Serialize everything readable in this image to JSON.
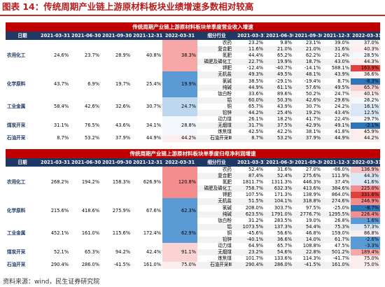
{
  "figure": {
    "title": "图表 14：传统周期产业链上游原材料板块业绩增速多数相对较高"
  },
  "source": "资料来源：wind，民生证券研究院",
  "colors": {
    "accent_red": "#c00000",
    "header_navy": "#1f3864"
  },
  "tables": [
    {
      "banner": "传统周期产业链上游原材料板块单季度营业收入增速",
      "headers": [
        "日期",
        "2021-03-31",
        "2021-06-30",
        "2021-09-30",
        "2021-12-31",
        "2022-03-31",
        "细分行业",
        "2021-03-31",
        "2021-06-30",
        "2021-09-30",
        "2021-12-31",
        "2022-03-31"
      ],
      "groups": [
        {
          "name": "农用化工",
          "values": [
            "24.6%",
            "23.7%",
            "28.9%",
            "40.8%",
            "38.3%"
          ],
          "heat": "#f8a7a7",
          "subs": [
            {
              "name": "农药",
              "values": [
                "23.2%",
                "9.8%",
                "23.1%",
                "39.0%",
                "37.0%"
              ],
              "last_color": "#fdf2f2"
            },
            {
              "name": "复合肥",
              "values": [
                "11.6%",
                "21.0%",
                "21.0%",
                "31.6%",
                "40.3%"
              ],
              "last_color": "#fdeeee"
            },
            {
              "name": "氮肥",
              "values": [
                "44.4%",
                "65.2%",
                "62.2%",
                "21.4%",
                "28.5%"
              ],
              "last_color": "#f4f7fc"
            },
            {
              "name": "磷肥及磷化工",
              "values": [
                "22.7%",
                "19.9%",
                "18.7%",
                "43.0%",
                "44.3%"
              ],
              "last_color": "#fdeeee"
            },
            {
              "name": "钾肥",
              "values": [
                "-12.4%",
                "-40.7%",
                "-14.1%",
                "588.1%",
                "163.9%"
              ],
              "last_color": "#e23f3f"
            }
          ]
        },
        {
          "name": "化学原料",
          "values": [
            "43.7%",
            "6.9%",
            "19.7%",
            "25.4%",
            "19.9%"
          ],
          "heat": "#5b9bd5",
          "subs": [
            {
              "name": "无机盐",
              "values": [
                "49.3%",
                "49.5%",
                "48.1%",
                "43.9%",
                "36.6%"
              ],
              "last_color": "#fdf2f2"
            },
            {
              "name": "氯碱",
              "values": [
                "38.5%",
                "-29.1%",
                "-19.4%",
                "8.7%",
                "-8.3%"
              ],
              "last_color": "#2e75b6"
            },
            {
              "name": "纯碱",
              "values": [
                "44.9%",
                "61.1%",
                "57.6%",
                "49.5%",
                "65.7%"
              ],
              "last_color": "#f9cfcf"
            },
            {
              "name": "钛白粉",
              "values": [
                "33.6%",
                "89.6%",
                "50.2%",
                "24.7%",
                "40.1%"
              ],
              "last_color": "#fdeeee"
            }
          ]
        },
        {
          "name": "工业金属",
          "values": [
            "58.4%",
            "42.6%",
            "32.6%",
            "30.7%",
            "24.7%"
          ],
          "heat": "#bdd7ee",
          "subs": [
            {
              "name": "铝",
              "values": [
                "60.0%",
                "50.3%",
                "42.6%",
                "29.6%",
                "26.2%"
              ],
              "last_color": "#f4f7fc"
            },
            {
              "name": "铜",
              "values": [
                "65.7%",
                "43.9%",
                "30.7%",
                "24.2%",
                "16.1%"
              ],
              "last_color": "#dae8f5"
            },
            {
              "name": "铅锌",
              "values": [
                "44.2%",
                "25.4%",
                "19.2%",
                "43.4%",
                "12.5%"
              ],
              "last_color": "#dae8f5"
            }
          ]
        },
        {
          "name": "煤炭开采",
          "values": [
            "31.1%",
            "76.5%",
            "43.6%",
            "34.1%",
            "28.8%"
          ],
          "heat": "#f4f7fc",
          "subs": [
            {
              "name": "动力煤",
              "values": [
                "26.1%",
                "18.2%",
                "41.7%",
                "22.4%",
                "29.7%"
              ],
              "last_color": "#f4f7fc"
            },
            {
              "name": "无烟煤",
              "values": [
                "31.7%",
                "37.5%",
                "42.9%",
                "49.1%",
                "-2.1%"
              ],
              "last_color": "#2e75b6"
            },
            {
              "name": "炼焦煤",
              "values": [
                "42.5%",
                "42.2%",
                "38.1%",
                "41.8%",
                "45.9%"
              ],
              "last_color": "#fdeeee"
            }
          ]
        },
        {
          "name": "石油开采",
          "values": [
            "8.7%",
            "53.2%",
            "37.9%",
            "44.9%",
            "44.2%"
          ],
          "heat": "#fdeeee",
          "subs": [
            {
              "name": "石油开采Ⅲ",
              "values": [
                "8.7%",
                "53.2%",
                "37.9%",
                "44.9%",
                "44.2%"
              ],
              "last_color": "#fdeeee"
            }
          ]
        }
      ]
    },
    {
      "banner": "传统周期产业链上游原材料板块单季度归母净利润增速",
      "headers": [
        "日期",
        "2021-03-31",
        "2021-06-30",
        "2021-09-30",
        "2021-12-31",
        "2022-03-31",
        "细分行业",
        "2021-03-31",
        "2021-06-30",
        "2021-09-30",
        "2021-12-31",
        "2022-03-31"
      ],
      "groups": [
        {
          "name": "农用化工",
          "values": [
            "268.2%",
            "194.2%",
            "158.3%",
            "626.9%",
            "120.8%"
          ],
          "heat": "#f48e8e",
          "subs": [
            {
              "name": "农药",
              "values": [
                "52.4%",
                "31.6%",
                "27.0%",
                "-86.0%",
                "136.9%"
              ],
              "last_color": "#f7c3c3"
            },
            {
              "name": "复合肥",
              "values": [
                "87.4%",
                "52.4%",
                "275.6%",
                "111.9%",
                "44.3%"
              ],
              "last_color": "#dae8f5"
            },
            {
              "name": "氮肥",
              "values": [
                "1811.7%",
                "1311.3%",
                "446.3%",
                "37.4%",
                "41.6%"
              ],
              "last_color": "#dae8f5"
            },
            {
              "name": "磷肥及磷化工",
              "values": [
                "758.7%",
                "632.3%",
                "413.6%",
                "384.6%",
                "225.0%"
              ],
              "last_color": "#f48e8e"
            },
            {
              "name": "钾肥",
              "values": [
                "107.5%",
                "171.3%",
                "138.9%",
                "864.0%",
                "331.6%"
              ],
              "last_color": "#e23f3f"
            }
          ]
        },
        {
          "name": "化学原料",
          "values": [
            "215.6%",
            "418.6%",
            "275.9%",
            "67.6%",
            "62.3%"
          ],
          "heat": "#5b9bd5",
          "subs": [
            {
              "name": "无机盐",
              "values": [
                "51.5%",
                "104.1%",
                "318.8%",
                "274.6%",
                "246.9%"
              ],
              "last_color": "#f48e8e"
            },
            {
              "name": "氯碱",
              "values": [
                "208.0%",
                "303.7%",
                "97.5%",
                "-25.0%",
                "-8.7%"
              ],
              "last_color": "#2e75b6"
            },
            {
              "name": "纯碱",
              "values": [
                "623.5%",
                "1791.0%",
                "2776.7%",
                "1295.5%",
                "226.4%"
              ],
              "last_color": "#f48e8e"
            },
            {
              "name": "钛白粉",
              "values": [
                "31.2%",
                "283.5%",
                "19.0%",
                "26.8%",
                "1.6%"
              ],
              "last_color": "#5b9bd5"
            }
          ]
        },
        {
          "name": "工业金属",
          "values": [
            "452.1%",
            "161.0%",
            "115.6%",
            "172.4%",
            "62.9%"
          ],
          "heat": "#5b9bd5",
          "subs": [
            {
              "name": "铝",
              "values": [
                "1073.5%",
                "137.3%",
                "54.4%",
                "75.3%",
                "57.3%"
              ],
              "last_color": "#dae8f5"
            },
            {
              "name": "铜",
              "values": [
                "-45.6%",
                "56.6%",
                "46.8%",
                "159.0%",
                "86.8%"
              ],
              "last_color": "#fdeeee"
            },
            {
              "name": "铅锌",
              "values": [
                "-40.1%",
                "36.6%",
                "14.0%",
                "61.7%",
                "-2.6%"
              ],
              "last_color": "#5b9bd5"
            }
          ]
        },
        {
          "name": "煤炭开采",
          "values": [
            "52.1%",
            "65.3%",
            "94.2%",
            "42.4%",
            "91.1%"
          ],
          "heat": "#fbd3d3",
          "subs": [
            {
              "name": "动力煤",
              "values": [
                "64.9%",
                "65.7%",
                "108.8%",
                "47.5%",
                "-3.3%"
              ],
              "last_color": "#5b9bd5"
            },
            {
              "name": "无烟煤",
              "values": [
                "23.2%",
                "54.6%",
                "22.8%",
                "501.2%",
                "189.4%"
              ],
              "last_color": "#f8a7a7"
            },
            {
              "name": "炼焦煤",
              "values": [
                "101.7%",
                "133.6%",
                "114.3%",
                "-41.7%",
                "75.0%"
              ],
              "last_color": "#fdeeee"
            }
          ]
        },
        {
          "name": "石油开采",
          "values": [
            "290.4%",
            "286.0%",
            "-41.5%",
            "161.0%",
            "75.0%"
          ],
          "heat": "#fdeeee",
          "subs": [
            {
              "name": "石油开采Ⅲ",
              "values": [
                "290.4%",
                "286.0%",
                "-41.5%",
                "161.0%",
                "75.0%"
              ],
              "last_color": "#fdeeee"
            }
          ]
        }
      ]
    }
  ]
}
